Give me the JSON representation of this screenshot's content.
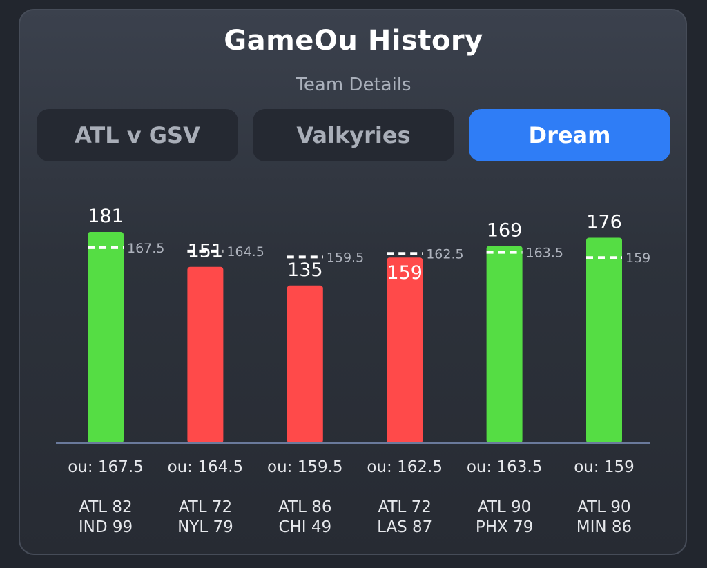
{
  "header": {
    "title": "GameOu History",
    "subtitle": "Team Details"
  },
  "tabs": [
    {
      "label": "ATL v GSV",
      "active": false
    },
    {
      "label": "Valkyries",
      "active": false
    },
    {
      "label": "Dream",
      "active": true
    }
  ],
  "colors": {
    "over": "#55dd44",
    "under": "#ff4a4a",
    "active_tab": "#2f7df6"
  },
  "chart_data": {
    "type": "bar",
    "categories": [
      "ATL 82 / IND 99",
      "ATL 72 / NYL 79",
      "ATL 86 / CHI 49",
      "ATL 72 / LAS 87",
      "ATL 90 / PHX 79",
      "ATL 90 / MIN 86"
    ],
    "values": [
      181,
      151,
      135,
      159,
      169,
      176
    ],
    "ou_lines": [
      167.5,
      164.5,
      159.5,
      162.5,
      163.5,
      159
    ],
    "ou_labels": [
      "ou: 167.5",
      "ou: 164.5",
      "ou: 159.5",
      "ou: 162.5",
      "ou: 163.5",
      "ou: 159"
    ],
    "games": [
      {
        "team": "ATL 82",
        "opponent": "IND 99",
        "result": "over"
      },
      {
        "team": "ATL 72",
        "opponent": "NYL 79",
        "result": "under"
      },
      {
        "team": "ATL 86",
        "opponent": "CHI 49",
        "result": "under"
      },
      {
        "team": "ATL 72",
        "opponent": "LAS 87",
        "result": "under"
      },
      {
        "team": "ATL 90",
        "opponent": "PHX 79",
        "result": "over"
      },
      {
        "team": "ATL 90",
        "opponent": "MIN 86",
        "result": "over"
      }
    ],
    "ylim": [
      0,
      181
    ],
    "title": "",
    "xlabel": "",
    "ylabel": "",
    "grid": false,
    "legend": "none"
  }
}
